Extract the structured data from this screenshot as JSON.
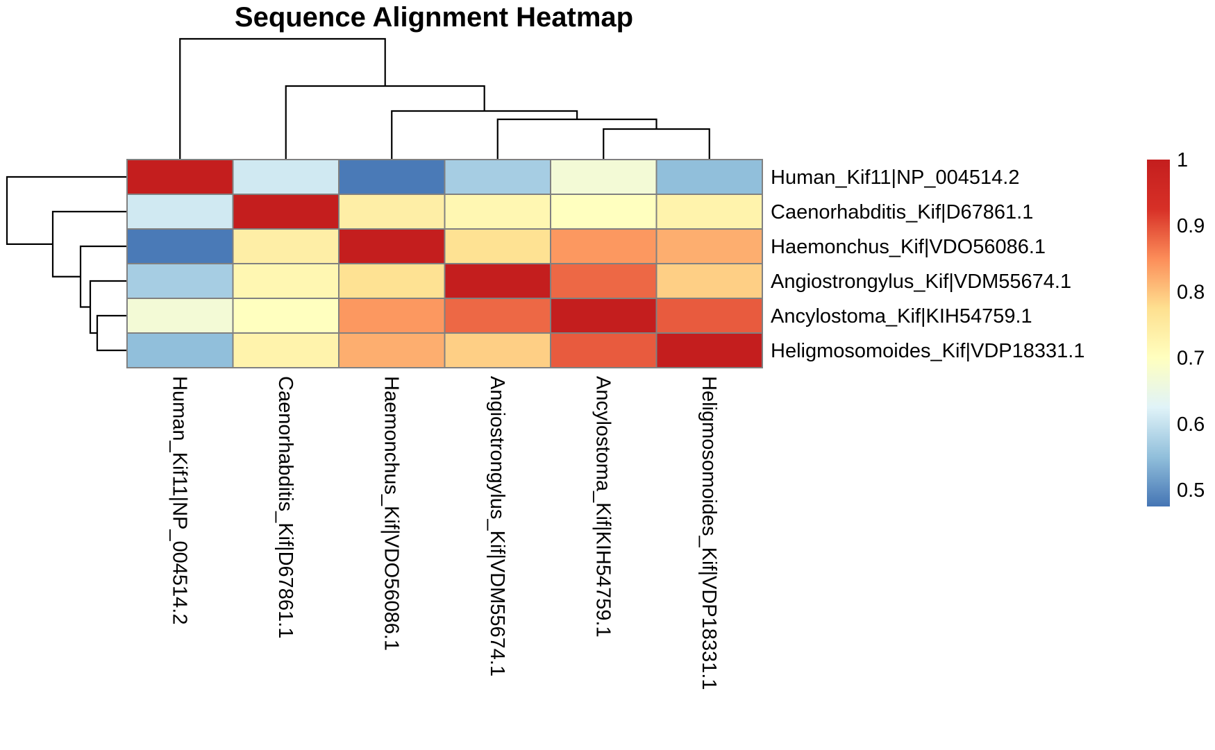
{
  "chart_data": {
    "type": "heatmap",
    "title": "Sequence Alignment Heatmap",
    "rows": [
      "Human_Kif11|NP_004514.2",
      "Caenorhabditis_Kif|D67861.1",
      "Haemonchus_Kif|VDO56086.1",
      "Angiostrongylus_Kif|VDM55674.1",
      "Ancylostoma_Kif|KIH54759.1",
      "Heligmosomoides_Kif|VDP18331.1"
    ],
    "columns": [
      "Human_Kif11|NP_004514.2",
      "Caenorhabditis_Kif|D67861.1",
      "Haemonchus_Kif|VDO56086.1",
      "Angiostrongylus_Kif|VDM55674.1",
      "Ancylostoma_Kif|KIH54759.1",
      "Heligmosomoides_Kif|VDP18331.1"
    ],
    "values": [
      [
        1.0,
        0.61,
        0.48,
        0.57,
        0.67,
        0.55
      ],
      [
        0.61,
        1.0,
        0.74,
        0.72,
        0.7,
        0.73
      ],
      [
        0.48,
        0.74,
        1.0,
        0.77,
        0.84,
        0.82
      ],
      [
        0.57,
        0.72,
        0.77,
        1.0,
        0.88,
        0.79
      ],
      [
        0.67,
        0.7,
        0.84,
        0.88,
        1.0,
        0.89
      ],
      [
        0.55,
        0.73,
        0.82,
        0.79,
        0.89,
        1.0
      ]
    ],
    "color_scale": {
      "min": 0.475,
      "max": 1.0,
      "stops": [
        "#4575B4",
        "#91BFDB",
        "#E0F3F8",
        "#FFFFBF",
        "#FEE090",
        "#FC8D59",
        "#D73027",
        "#C41E1E"
      ],
      "ticks": [
        0.5,
        0.6,
        0.7,
        0.8,
        0.9,
        1
      ],
      "tick_labels": [
        "0.5",
        "0.6",
        "0.7",
        "0.8",
        "0.9",
        "1"
      ]
    },
    "dendrogram": "both",
    "cell_border_color": "#808080"
  }
}
